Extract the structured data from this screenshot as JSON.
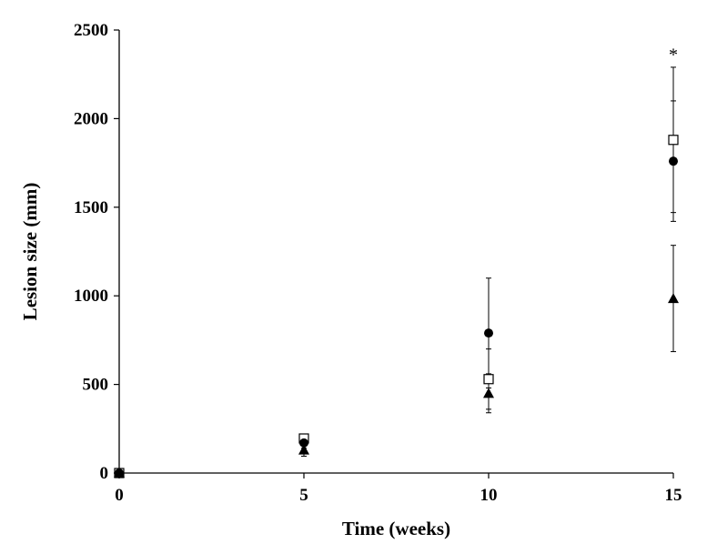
{
  "chart_data": {
    "type": "scatter",
    "xlabel": "Time (weeks)",
    "ylabel": "Lesion size (mm)",
    "xlim": [
      0,
      15
    ],
    "ylim": [
      0,
      2500
    ],
    "x_ticks": [
      "0",
      "5",
      "10",
      "15"
    ],
    "y_ticks": [
      "0",
      "500",
      "1000",
      "1500",
      "2000",
      "2500"
    ],
    "grid": false,
    "legend": "none",
    "series": [
      {
        "marker": "open-square",
        "x": [
          0,
          5,
          10,
          15
        ],
        "y": [
          0,
          195,
          530,
          1880
        ],
        "err": [
          0,
          25,
          170,
          410
        ]
      },
      {
        "marker": "filled-circle",
        "x": [
          0,
          5,
          10,
          15
        ],
        "y": [
          0,
          170,
          790,
          1760
        ],
        "err": [
          0,
          30,
          310,
          340
        ]
      },
      {
        "marker": "filled-triangle",
        "x": [
          0,
          5,
          10,
          15
        ],
        "y": [
          0,
          130,
          450,
          985
        ],
        "err": [
          0,
          35,
          110,
          300
        ]
      }
    ],
    "annotations": [
      {
        "text": "*",
        "x": 15,
        "y": 2380
      }
    ]
  }
}
